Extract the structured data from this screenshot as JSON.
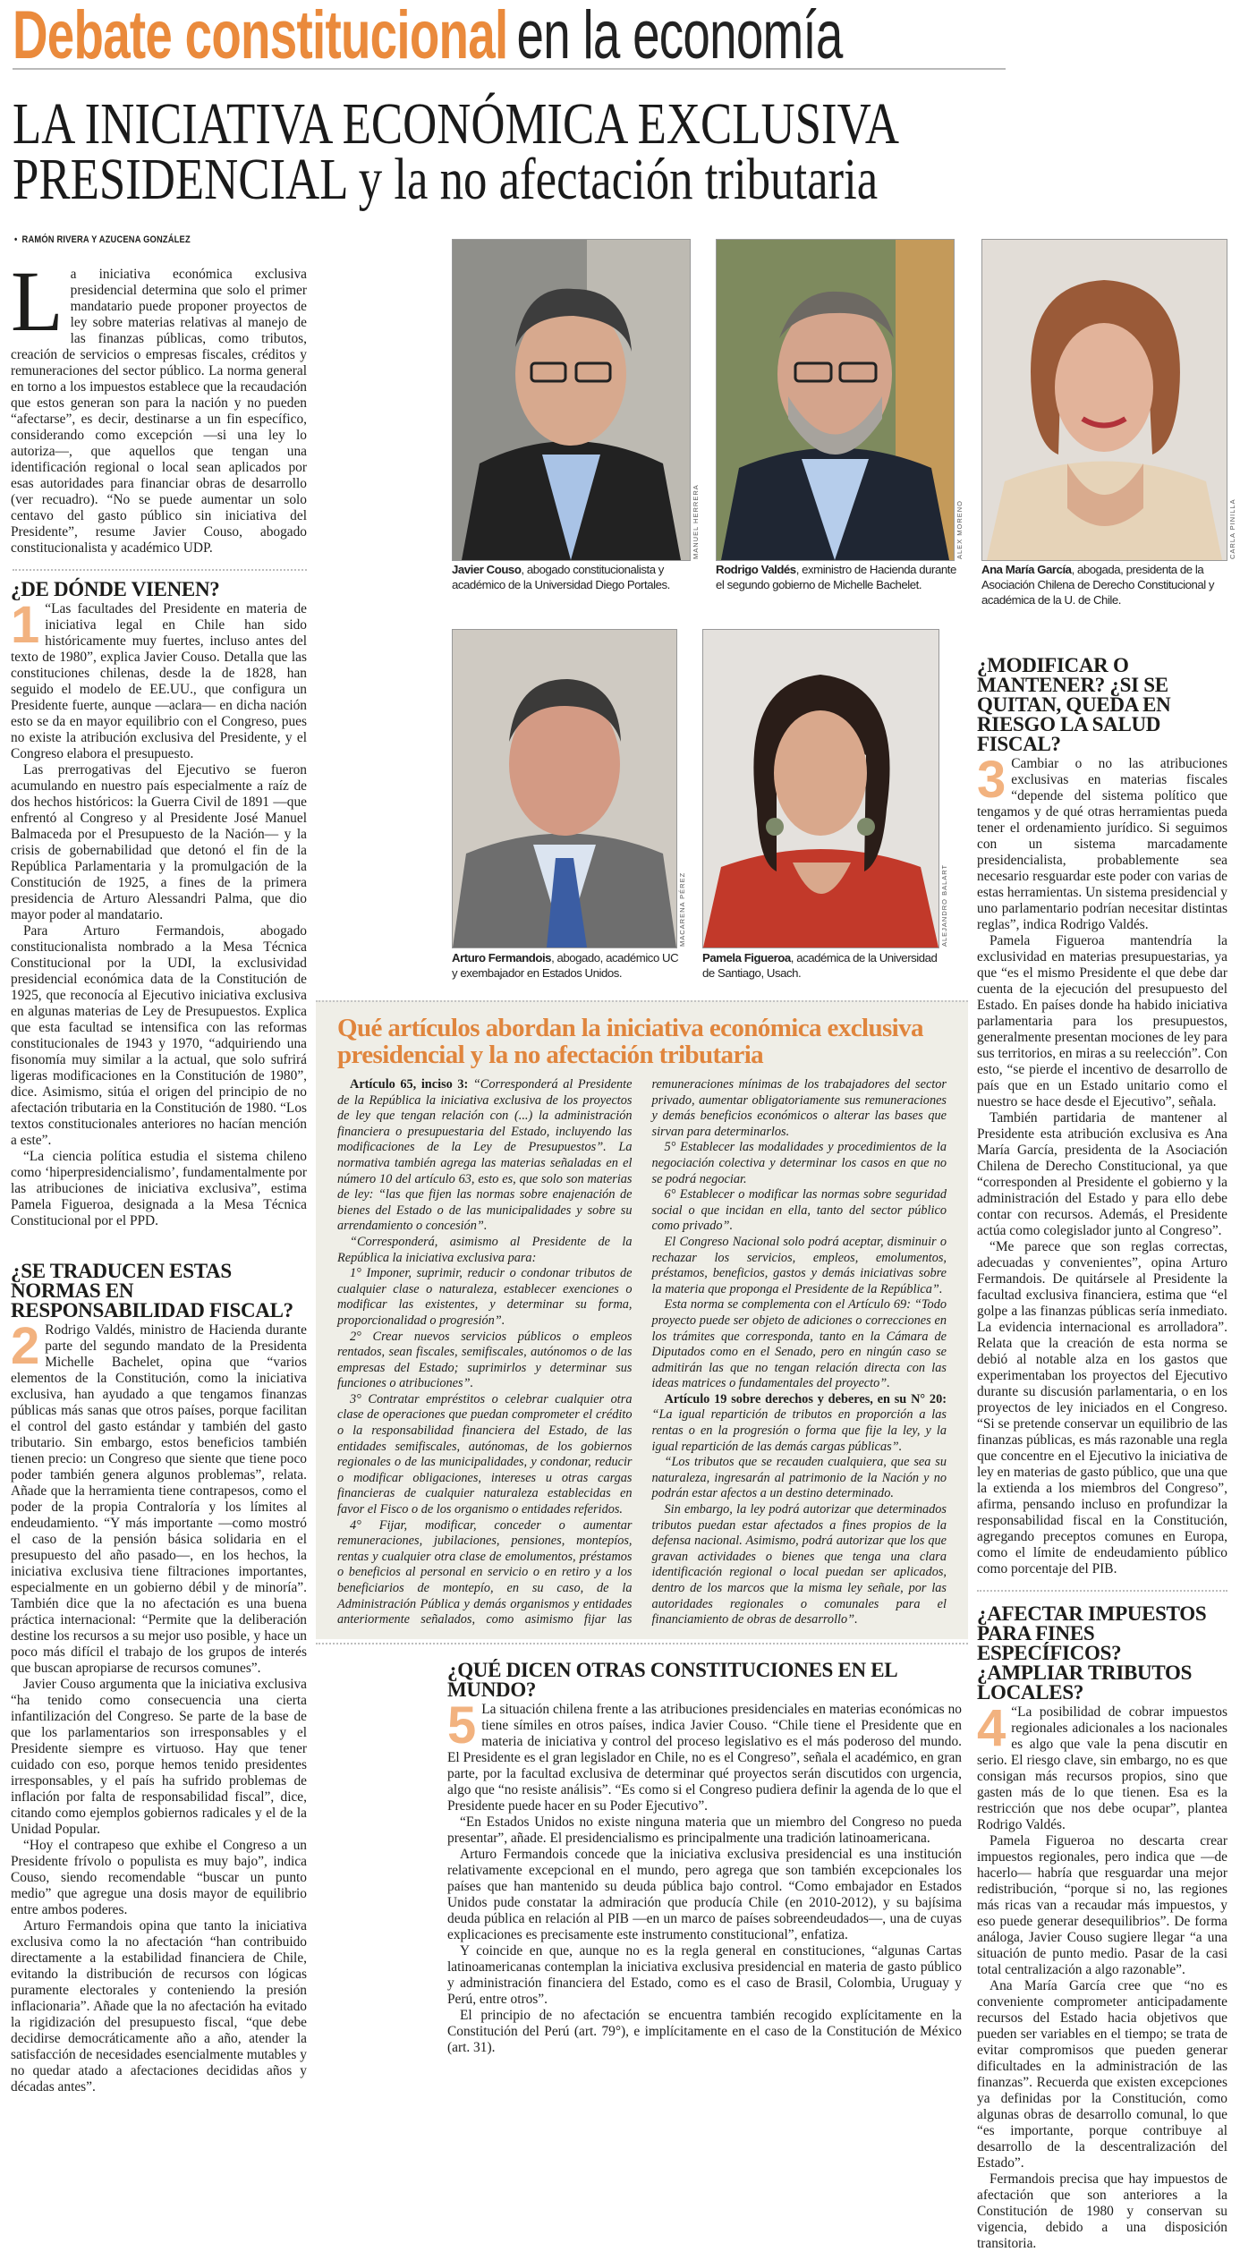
{
  "header": {
    "kicker_bold": "Debate constitucional",
    "kicker_light": "en la economía"
  },
  "title": {
    "line1": "LA INICIATIVA ECONÓMICA EXCLUSIVA",
    "line2": "PRESIDENCIAL y la no afectación tributaria"
  },
  "byline": "RAMÓN RIVERA Y AZUCENA GONZÁLEZ",
  "intro": {
    "drop_cap": "L",
    "text": "a iniciativa económica exclusiva presidencial determina que solo el primer mandatario puede proponer proyectos de ley sobre materias relativas al manejo de las finanzas públicas, como tributos, creación de servicios o empresas fiscales, créditos y remuneraciones del sector público. La norma general en torno a los impuestos establece que la recaudación que estos generan son para la nación y no pueden “afectarse”, es decir, destinarse a un fin específico, considerando como excepción —si una ley lo autoriza—, que aquellos que tengan una identificación regional o local sean aplicados por esas autoridades para financiar obras de desarrollo (ver recuadro). “No se puede aumentar un solo centavo del gasto público sin iniciativa del Presidente”, resume Javier Couso, abogado constitucionalista y académico UDP."
  },
  "sections": [
    {
      "number": "1",
      "heading": "¿DE DÓNDE VIENEN?",
      "paragraphs": [
        "“Las facultades del Presidente en materia de iniciativa legal en Chile han sido históricamente muy fuertes, incluso antes del texto de 1980”, explica Javier Couso. Detalla que las constituciones chilenas, desde la de 1828, han seguido el modelo de EE.UU., que configura un Presidente fuerte, aunque —aclara— en dicha nación esto se da en mayor equilibrio con el Congreso, pues no existe la atribución exclusiva del Presidente, y el Congreso elabora el presupuesto.",
        "Las prerrogativas del Ejecutivo se fueron acumulando en nuestro país especialmente a raíz de dos hechos históricos: la Guerra Civil de 1891 —que enfrentó al Congreso y al Presidente José Manuel Balmaceda por el Presupuesto de la Nación— y la crisis de gobernabilidad que detonó el fin de la República Parlamentaria y la promulgación de la Constitución de 1925, a fines de la primera presidencia de Arturo Alessandri Palma, que dio mayor poder al mandatario.",
        "Para Arturo Fermandois, abogado constitucionalista nombrado a la Mesa Técnica Constitucional por la UDI, la exclusividad presidencial económica data de la Constitución de 1925, que reconocía al Ejecutivo iniciativa exclusiva en algunas materias de Ley de Presupuestos. Explica que esta facultad se intensifica con las reformas constitucionales de 1943 y 1970, “adquiriendo una fisonomía muy similar a la actual, que solo sufrirá ligeras modificaciones en la Constitución de 1980”, dice. Asimismo, sitúa el origen del principio de no afectación tributaria en la Constitución de 1980. “Los textos constitucionales anteriores no hacían mención a este”.",
        "“La ciencia política estudia el sistema chileno como ‘hiperpresidencialismo’, fundamentalmente por las atribuciones de iniciativa exclusiva”, estima Pamela Figueroa, designada a la Mesa Técnica Constitucional por el PPD."
      ]
    },
    {
      "number": "2",
      "heading": "¿SE TRADUCEN ESTAS NORMAS EN RESPONSABILIDAD FISCAL?",
      "paragraphs": [
        "Rodrigo Valdés, ministro de Hacienda durante parte del segundo mandato de la Presidenta Michelle Bachelet, opina que “varios elementos de la Constitución, como la iniciativa exclusiva, han ayudado a que tengamos finanzas públicas más sanas que otros países, porque facilitan el control del gasto estándar y también del gasto tributario. Sin embargo, estos beneficios también tienen precio: un Congreso que siente que tiene poco poder también genera algunos problemas”, relata. Añade que la herramienta tiene contrapesos, como el poder de la propia Contraloría y los límites al endeudamiento. “Y más importante —como mostró el caso de la pensión básica solidaria en el presupuesto del año pasado—, en los hechos, la iniciativa exclusiva tiene filtraciones importantes, especialmente en un gobierno débil y de minoría”. También dice que la no afectación es una buena práctica internacional: “Permite que la deliberación destine los recursos a su mejor uso posible, y hace un poco más difícil el trabajo de los grupos de interés que buscan apropiarse de recursos comunes”.",
        "Javier Couso argumenta que la iniciativa exclusiva “ha tenido como consecuencia una cierta infantilización del Congreso. Se parte de la base de que los parlamentarios son irresponsables y el Presidente siempre es virtuoso. Hay que tener cuidado con eso, porque hemos tenido presidentes irresponsables, y el país ha sufrido problemas de inflación por falta de responsabilidad fiscal”, dice, citando como ejemplos gobiernos radicales y el de la Unidad Popular.",
        "“Hoy el contrapeso que exhibe el Congreso a un Presidente frívolo o populista es muy bajo”, indica Couso, siendo recomendable “buscar un punto medio” que agregue una dosis mayor de equilibrio entre ambos poderes.",
        "Arturo Fermandois opina que tanto la iniciativa exclusiva como la no afectación “han contribuido directamente a la estabilidad financiera de Chile, evitando la distribución de recursos con lógicas puramente electorales y conteniendo la presión inflacionaria”. Añade que la no afectación ha evitado la rigidización del presupuesto fiscal, “que debe decidirse democráticamente año a año, atender la satisfacción de necesidades esencialmente mutables y no quedar atado a afectaciones decididas años y décadas antes”."
      ]
    },
    {
      "number": "3",
      "heading": "¿MODIFICAR O MANTENER? ¿SI SE QUITAN, QUEDA EN RIESGO LA SALUD FISCAL?",
      "paragraphs": [
        "Cambiar o no las atribuciones exclusivas en materias fiscales “depende del sistema político que tengamos y de qué otras herramientas pueda tener el ordenamiento jurídico. Si seguimos con un sistema marcadamente presidencialista, probablemente sea necesario resguardar este poder con varias de estas herramientas. Un sistema presidencial y uno parlamentario podrían necesitar distintas reglas”, indica Rodrigo Valdés.",
        "Pamela Figueroa mantendría la exclusividad en materias presupuestarias, ya que “es el mismo Presidente el que debe dar cuenta de la ejecución del presupuesto del Estado. En países donde ha habido iniciativa parlamentaria para los presupuestos, generalmente presentan mociones de ley para sus territorios, en miras a su reelección”. Con esto, “se pierde el incentivo de desarrollo de país que en un Estado unitario como el nuestro se hace desde el Ejecutivo”, señala.",
        "También partidaria de mantener al Presidente esta atribución exclusiva es Ana María García, presidenta de la Asociación Chilena de Derecho Constitucional, ya que “corresponden al Presidente el gobierno y la administración del Estado y para ello debe contar con recursos. Además, el Presidente actúa como colegislador junto al Congreso”.",
        "“Me parece que son reglas correctas, adecuadas y convenientes”, opina Arturo Fermandois. De quitársele al Presidente la facultad exclusiva financiera, estima que “el golpe a las finanzas públicas sería inmediato. La evidencia internacional es arrolladora”. Relata que la creación de esta norma se debió al notable alza en los gastos que experimentaban los proyectos del Ejecutivo durante su discusión parlamentaria, o en los proyectos de ley iniciados en el Congreso. “Si se pretende conservar un equilibrio de las finanzas públicas, es más razonable una regla que concentre en el Ejecutivo la iniciativa de ley en materias de gasto público, que una que la extienda a los miembros del Congreso”, afirma, pensando incluso en profundizar la responsabilidad fiscal en la Constitución, agregando preceptos comunes en Europa, como el límite de endeudamiento público como porcentaje del PIB."
      ]
    },
    {
      "number": "4",
      "heading": "¿AFECTAR IMPUESTOS PARA FINES ESPECÍFICOS? ¿AMPLIAR TRIBUTOS LOCALES?",
      "paragraphs": [
        "“La posibilidad de cobrar impuestos regionales adicionales a los nacionales es algo que vale la pena discutir en serio. El riesgo clave, sin embargo, no es que consigan más recursos propios, sino que gasten más de lo que tienen. Esa es la restricción que nos debe ocupar”, plantea Rodrigo Valdés.",
        "Pamela Figueroa no descarta crear impuestos regionales, pero indica que —de hacerlo— habría que resguardar una mejor redistribución, “porque si no, las regiones más ricas van a recaudar más impuestos, y eso puede generar desequilibrios”. De forma análoga, Javier Couso sugiere llegar “a una situación de punto medio. Pasar de la casi total centralización a algo razonable”.",
        "Ana María García cree que “no es conveniente comprometer anticipadamente recursos del Estado hacia objetivos que pueden ser variables en el tiempo; se trata de evitar compromisos que pueden generar dificultades en la administración de las finanzas”. Recuerda que existen excepciones ya definidas por la Constitución, como algunas obras de desarrollo comunal, lo que “es importante, porque contribuye al desarrollo de la descentralización del Estado”.",
        "Fermandois precisa que hay impuestos de afectación que son anteriores a la Constitución de 1980 y conservan su vigencia, debido a una disposición transitoria."
      ]
    },
    {
      "number": "5",
      "heading": "¿QUÉ DICEN OTRAS CONSTITUCIONES EN EL MUNDO?",
      "paragraphs": [
        "La situación chilena frente a las atribuciones presidenciales en materias económicas no tiene símiles en otros países, indica Javier Couso. “Chile tiene el Presidente que en materia de iniciativa y control del proceso legislativo es el más poderoso del mundo. El Presidente es el gran legislador en Chile, no es el Congreso”, señala el académico, en gran parte, por la facultad exclusiva de determinar qué proyectos serán discutidos con urgencia, algo que “no resiste análisis”. “Es como si el Congreso pudiera definir la agenda de lo que el Presidente puede hacer en su Poder Ejecutivo”.",
        "“En Estados Unidos no existe ninguna materia que un miembro del Congreso no pueda presentar”, añade. El presidencialismo es principalmente una tradición latinoamericana.",
        "Arturo Fermandois concede que la iniciativa exclusiva presidencial es una institución relativamente excepcional en el mundo, pero agrega que son también excepcionales los países que han mantenido su deuda pública bajo control. “Como embajador en Estados Unidos pude constatar la admiración que producía Chile (en 2010-2012), y su bajísima deuda pública en relación al PIB —en un marco de países sobreendeudados—, una de cuyas explicaciones es precisamente este instrumento constitucional”, enfatiza.",
        "Y coincide en que, aunque no es la regla general en constituciones, “algunas Cartas latinoamericanas contemplan la iniciativa exclusiva presidencial en materia de gasto público y administración financiera del Estado, como es el caso de Brasil, Colombia, Uruguay y Perú, entre otros”.",
        "El principio de no afectación se encuentra también recogido explícitamente en la Constitución del Perú (art. 79°), e implícitamente en el caso de la Constitución de México (art. 31)."
      ]
    }
  ],
  "photos": [
    {
      "name": "Javier Couso",
      "caption": ", abogado constitucionalista y académico de la Universidad Diego Portales.",
      "credit": "MANUEL HERRERA"
    },
    {
      "name": "Rodrigo Valdés",
      "caption": ", exministro de Hacienda durante el segundo gobierno de Michelle Bachelet.",
      "credit": "ALEX MORENO"
    },
    {
      "name": "Ana María García",
      "caption": ", abogada, presidenta de la Asociación Chilena de Derecho Constitucional y académica de la U. de Chile.",
      "credit": "CARLA PINILLA"
    },
    {
      "name": "Arturo Fermandois",
      "caption": ", abogado, académico UC y exembajador en Estados Unidos.",
      "credit": "MACARENA PÉREZ"
    },
    {
      "name": "Pamela Figueroa",
      "caption": ", académica de la Universidad de Santiago, Usach.",
      "credit": "ALEJANDRO BALART"
    }
  ],
  "box": {
    "title": "Qué artículos abordan la iniciativa económica exclusiva presidencial y la no afectación tributaria",
    "paragraphs": [
      {
        "lead": "Artículo 65, inciso 3:",
        "text": " “Corresponderá al Presidente de la República la iniciativa exclusiva de los proyectos de ley que tengan relación con (...) la administración financiera o presupuestaria del Estado, incluyendo las modificaciones de la Ley de Presupuestos”. La normativa también agrega las materias señaladas en el número 10 del artículo 63, esto es, que solo son materias de ley: “las que fijen las normas sobre enajenación de bienes del Estado o de las municipalidades y sobre su arrendamiento o concesión”."
      },
      {
        "lead": "",
        "text": "“Corresponderá, asimismo al Presidente de la República la iniciativa exclusiva para:"
      },
      {
        "lead": "",
        "text": "1° Imponer, suprimir, reducir o condonar tributos de cualquier clase o naturaleza, establecer exenciones o modificar las existentes, y determinar su forma, proporcionalidad o progresión”."
      },
      {
        "lead": "",
        "text": "2° Crear nuevos servicios públicos o empleos rentados, sean fiscales, semifiscales, autónomos o de las empresas del Estado; suprimirlos y determinar sus funciones o atribuciones”."
      },
      {
        "lead": "",
        "text": "3° Contratar empréstitos o celebrar cualquier otra clase de operaciones que puedan comprometer el crédito o la responsabilidad financiera del Estado, de las entidades semifiscales, autónomas, de los gobiernos regionales o de las municipalidades, y condonar, reducir o modificar obligaciones, intereses u otras cargas financieras de cualquier naturaleza establecidas en favor el Fisco o de los organismo o entidades referidos."
      },
      {
        "lead": "",
        "text": "4° Fijar, modificar, conceder o aumentar remuneraciones, jubilaciones, pensiones, montepíos, rentas y cualquier otra clase de emolumentos, préstamos o beneficios al personal en servicio o en retiro y a los beneficiarios de montepío, en su caso, de la Administración Pública y demás organismos y entidades anteriormente señalados, como asimismo fijar las remuneraciones mínimas de los trabajadores del sector privado, aumentar obligatoriamente sus remuneraciones y demás beneficios económicos o alterar las bases que sirvan para determinarlos."
      },
      {
        "lead": "",
        "text": "5° Establecer las modalidades y procedimientos de la negociación colectiva y determinar los casos en que no se podrá negociar."
      },
      {
        "lead": "",
        "text": "6° Establecer o modificar las normas sobre seguridad social o que incidan en ella, tanto del sector público como privado”."
      },
      {
        "lead": "",
        "text": "El Congreso Nacional solo podrá aceptar, disminuir o rechazar los servicios, empleos, emolumentos, préstamos, beneficios, gastos y demás iniciativas sobre la materia que proponga el Presidente de la República”."
      },
      {
        "lead": "",
        "text": "Esta norma se complementa con el Artículo 69: “Todo proyecto puede ser objeto de adiciones o correcciones en los trámites que corresponda, tanto en la Cámara de Diputados como en el Senado, pero en ningún caso se admitirán las que no tengan relación directa con las ideas matrices o fundamentales del proyecto”."
      },
      {
        "lead": "Artículo 19 sobre derechos y deberes, en su N° 20:",
        "text": " “La igual repartición de tributos en proporción a las rentas o en la progresión o forma que fije la ley, y la igual repartición de las demás cargas públicas”."
      },
      {
        "lead": "",
        "text": "“Los tributos que se recauden cualquiera, que sea su naturaleza, ingresarán al patrimonio de la Nación y no podrán estar afectos a un destino determinado."
      },
      {
        "lead": "",
        "text": "Sin embargo, la ley podrá autorizar que determinados tributos puedan estar afectados a fines propios de la defensa nacional. Asimismo, podrá autorizar que los que gravan actividades o bienes que tenga una clara identificación regional o local puedan ser aplicados, dentro de los marcos que la misma ley señale, por las autoridades regionales o comunales para el financiamiento de obras de desarrollo”."
      }
    ]
  },
  "colors": {
    "accent_orange": "#ea8a3c",
    "box_background": "#efeee7",
    "text": "#1d1d1b"
  }
}
